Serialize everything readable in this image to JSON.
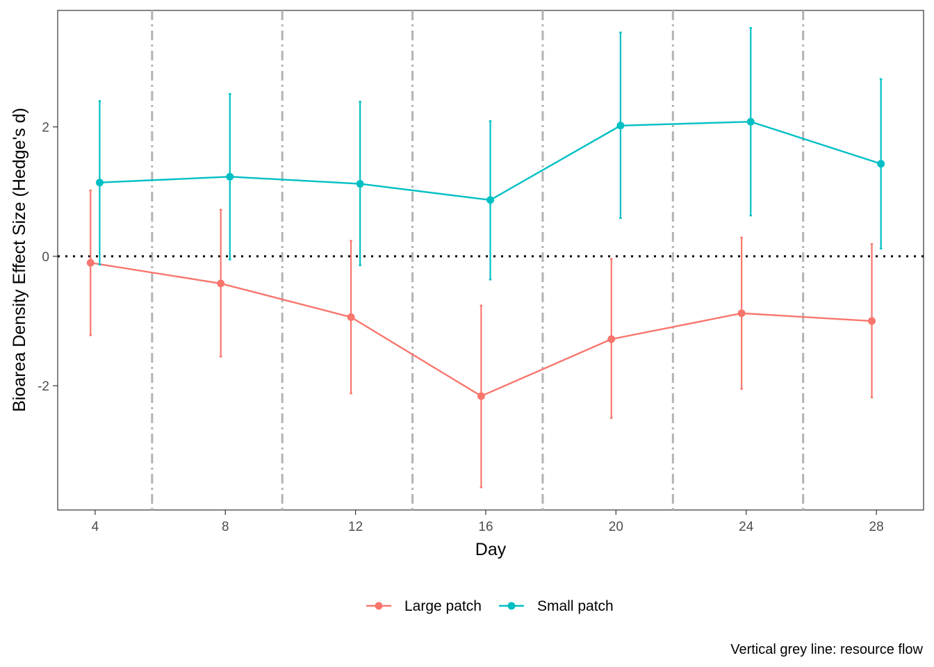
{
  "chart_data": {
    "type": "line",
    "xlabel": "Day",
    "ylabel": "Bioarea Density Effect Size (Hedge's d)",
    "caption": "Vertical grey line: resource flow",
    "x_ticks": [
      4,
      8,
      12,
      16,
      20,
      24,
      28
    ],
    "y_ticks": [
      -2,
      0,
      2
    ],
    "xlim": [
      2.85,
      29.45
    ],
    "ylim": [
      -3.92,
      3.8
    ],
    "reference_line_y": 0,
    "resource_flow_days": [
      5.75,
      9.75,
      13.75,
      17.75,
      21.75,
      25.75
    ],
    "grid": false,
    "legend_position": "bottom",
    "series": [
      {
        "name": "Large patch",
        "color": "#F8766D",
        "x": [
          4,
          8,
          12,
          16,
          20,
          24,
          28
        ],
        "y": [
          -0.1,
          -0.42,
          -0.94,
          -2.16,
          -1.28,
          -0.88,
          -1.0
        ],
        "lower": [
          -1.22,
          -1.55,
          -2.12,
          -3.57,
          -2.5,
          -2.05,
          -2.18
        ],
        "upper": [
          1.02,
          0.72,
          0.24,
          -0.76,
          -0.04,
          0.29,
          0.19
        ]
      },
      {
        "name": "Small patch",
        "color": "#00BFC4",
        "x": [
          4,
          8,
          12,
          16,
          20,
          24,
          28
        ],
        "y": [
          1.14,
          1.23,
          1.12,
          0.87,
          2.02,
          2.08,
          1.43
        ],
        "lower": [
          -0.13,
          -0.05,
          -0.14,
          -0.36,
          0.59,
          0.63,
          0.12
        ],
        "upper": [
          2.4,
          2.51,
          2.39,
          2.09,
          3.46,
          3.53,
          2.74
        ]
      }
    ]
  }
}
